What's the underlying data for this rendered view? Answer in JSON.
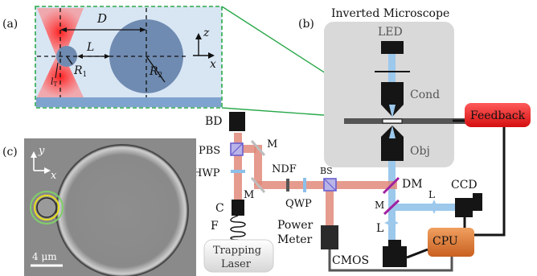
{
  "panels": {
    "a": "(a)",
    "b": "(b)",
    "c": "(c)"
  },
  "panel_a": {
    "D": "D",
    "L": "L",
    "R1": "R",
    "R1_sub": "1",
    "R2": "R",
    "R2_sub": "2",
    "lT": "l",
    "lT_sub": "T",
    "z": "z",
    "x": "x"
  },
  "panel_b": {
    "title": "Inverted Microscope",
    "LED": "LED",
    "Cond": "Cond",
    "Obj": "Obj",
    "Feedback": "Feedback",
    "BD": "BD",
    "PBS": "PBS",
    "HWP": "HWP",
    "M": "M",
    "NDF": "NDF",
    "BS": "BS",
    "QWP": "QWP",
    "DM": "DM",
    "L": "L",
    "CCD": "CCD",
    "C": "C",
    "F": "F",
    "Power_line1": "Power",
    "Power_line2": "Meter",
    "CPU": "CPU",
    "CMOS": "CMOS",
    "Laser_line1": "Trapping",
    "Laser_line2": "Laser"
  },
  "panel_c": {
    "y": "y",
    "x": "x",
    "scale": "4 μm"
  },
  "colors": {
    "laser": "#e08a7a",
    "beam_blue": "#9cc8ec",
    "panel_a_bg": "#d8e6f4",
    "particle": "#6f8bb1",
    "dashed_green": "#2aa84a",
    "microscope_box": "#d9d9d9",
    "feedback": "#e82020",
    "cpu": "#d9752a",
    "dark": "#151515"
  }
}
